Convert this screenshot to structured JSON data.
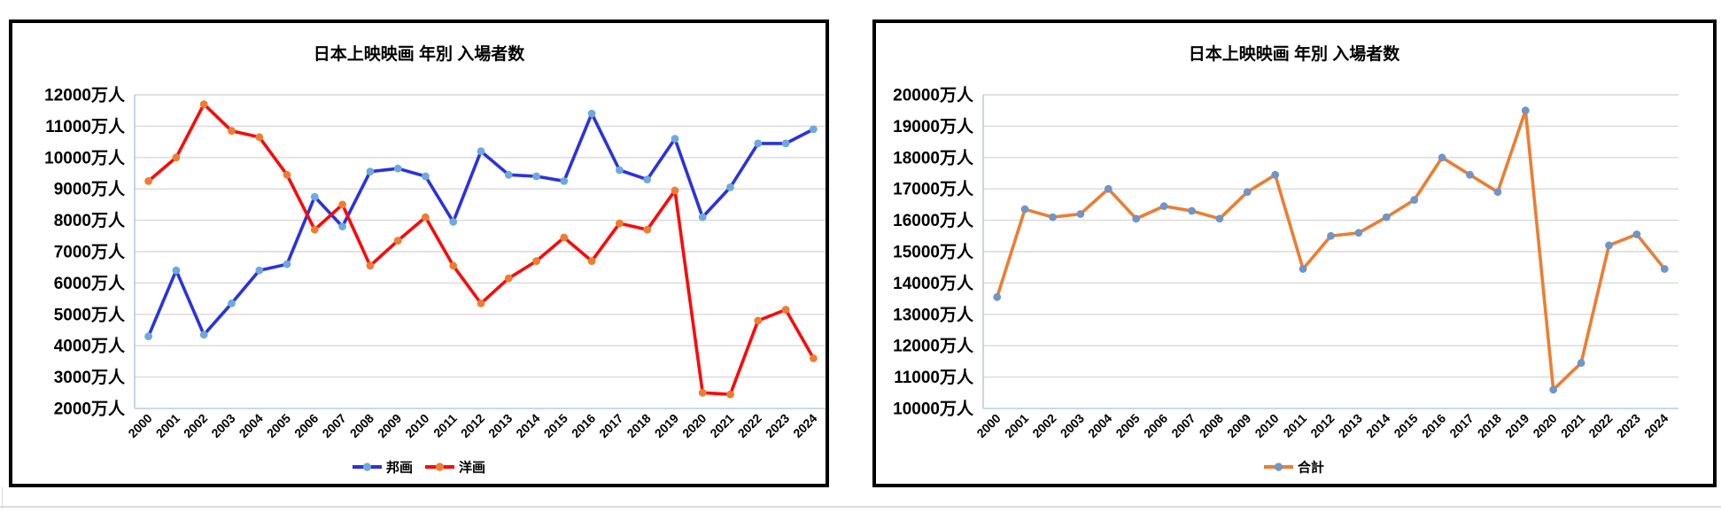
{
  "page": {
    "background": "#ffffff"
  },
  "chart_data": [
    {
      "type": "line",
      "title": "日本上映映画 年別 入場者数",
      "categories": [
        "2000",
        "2001",
        "2002",
        "2003",
        "2004",
        "2005",
        "2006",
        "2007",
        "2008",
        "2009",
        "2010",
        "2011",
        "2012",
        "2013",
        "2014",
        "2015",
        "2016",
        "2017",
        "2018",
        "2019",
        "2020",
        "2021",
        "2022",
        "2023",
        "2024"
      ],
      "series": [
        {
          "name": "邦画",
          "line_color": "#2a33dd",
          "marker_color": "#6fa8dc",
          "values": [
            4300,
            6400,
            4350,
            5350,
            6400,
            6600,
            8750,
            7800,
            9550,
            9650,
            9400,
            7950,
            10200,
            9450,
            9400,
            9250,
            11400,
            9600,
            9300,
            10600,
            8100,
            9050,
            10450,
            10450,
            10900
          ]
        },
        {
          "name": "洋画",
          "line_color": "#fe0808",
          "marker_color": "#ed7d31",
          "values": [
            9250,
            10000,
            11700,
            10850,
            10650,
            9450,
            7700,
            8500,
            6550,
            7350,
            8100,
            6550,
            5350,
            6150,
            6700,
            7450,
            6700,
            7900,
            7700,
            8950,
            2500,
            2450,
            4800,
            5150,
            3600
          ]
        }
      ],
      "y_axis": {
        "min": 2000,
        "max": 12000,
        "step": 1000,
        "unit": "万人"
      },
      "xlabel": "",
      "ylabel": "",
      "grid": true,
      "legend_position": "bottom",
      "colors": {
        "gridline": "#d9d9d9",
        "axis_line": "#b7cde2",
        "text": "#000000"
      }
    },
    {
      "type": "line",
      "title": "日本上映映画 年別 入場者数",
      "categories": [
        "2000",
        "2001",
        "2002",
        "2003",
        "2004",
        "2005",
        "2006",
        "2007",
        "2008",
        "2009",
        "2010",
        "2011",
        "2012",
        "2013",
        "2014",
        "2015",
        "2016",
        "2017",
        "2018",
        "2019",
        "2020",
        "2021",
        "2022",
        "2023",
        "2024"
      ],
      "series": [
        {
          "name": "合計",
          "line_color": "#ed7d31",
          "marker_color": "#6e96c8",
          "values": [
            13550,
            16350,
            16100,
            16200,
            17000,
            16050,
            16450,
            16300,
            16050,
            16900,
            17450,
            14450,
            15500,
            15600,
            16100,
            16650,
            18000,
            17450,
            16900,
            19500,
            10600,
            11450,
            15200,
            15550,
            14450
          ]
        }
      ],
      "y_axis": {
        "min": 10000,
        "max": 20000,
        "step": 1000,
        "unit": "万人"
      },
      "xlabel": "",
      "ylabel": "",
      "grid": true,
      "legend_position": "bottom",
      "colors": {
        "gridline": "#d9d9d9",
        "axis_line": "#b7cde2",
        "text": "#000000"
      }
    }
  ]
}
